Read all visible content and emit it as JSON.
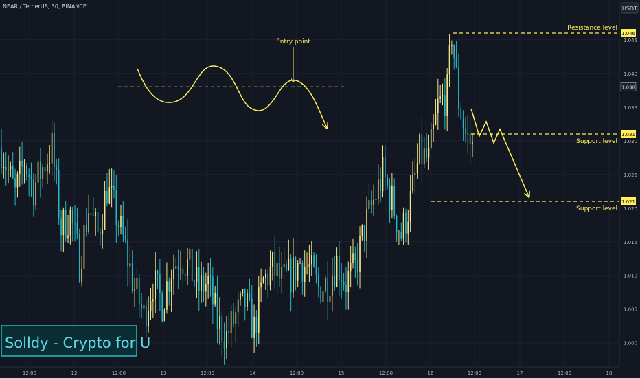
{
  "header": {
    "symbol_line": "NEAR / TetherUS, 30, BINANCE",
    "currency_badge": "USDT"
  },
  "watermark": "Solldy - Crypto for U",
  "colors": {
    "background": "#131722",
    "up_candle": "#f0e58a",
    "down_candle": "#26b8c4",
    "annotation": "#ffef5a",
    "axis_text": "#b2b5be",
    "grid": "#1e2230"
  },
  "chart_data": {
    "type": "candlestick",
    "x_tick_labels": [
      "12:00",
      "12",
      "12:00",
      "13",
      "12:00",
      "14",
      "12:00",
      "15",
      "12:00",
      "16",
      "12:00",
      "17",
      "12:00",
      "18"
    ],
    "y_ticks": [
      1.0,
      1.005,
      1.01,
      1.015,
      1.02,
      1.025,
      1.03,
      1.035,
      1.04,
      1.045
    ],
    "y_tick_labels": [
      "1.000",
      "1.005",
      "1.010",
      "1.015",
      "1.020",
      "1.025",
      "1.030",
      "1.035",
      "1.040",
      "1.045"
    ],
    "ylim": [
      0.9964,
      1.0509
    ],
    "levels": [
      {
        "label": "Resistance level",
        "value": 1.046,
        "value_label": "1.046",
        "label_position": "above"
      },
      {
        "label": "Support level",
        "value": 1.031,
        "value_label": "1.031",
        "label_position": "below"
      },
      {
        "label": "Support level",
        "value": 1.021,
        "value_label": "1.021",
        "label_position": "below"
      }
    ],
    "entry": {
      "label": "Entry point",
      "value": 1.038,
      "value_label": "1.038"
    },
    "anchors": [
      [
        0,
        1.029
      ],
      [
        6,
        1.022
      ],
      [
        10,
        1.027
      ],
      [
        14,
        1.023
      ],
      [
        18,
        1.026
      ],
      [
        22,
        1.029
      ],
      [
        26,
        1.017
      ],
      [
        30,
        1.019
      ],
      [
        34,
        1.012
      ],
      [
        38,
        1.02
      ],
      [
        42,
        1.016
      ],
      [
        46,
        1.023
      ],
      [
        50,
        1.019
      ],
      [
        54,
        1.014
      ],
      [
        58,
        1.008
      ],
      [
        62,
        1.004
      ],
      [
        66,
        1.009
      ],
      [
        70,
        1.006
      ],
      [
        74,
        1.011
      ],
      [
        78,
        1.013
      ],
      [
        82,
        1.011
      ],
      [
        86,
        1.008
      ],
      [
        90,
        1.009
      ],
      [
        94,
        1.003
      ],
      [
        98,
        1.001
      ],
      [
        102,
        1.004
      ],
      [
        106,
        1.006
      ],
      [
        110,
        1.002
      ],
      [
        114,
        1.009
      ],
      [
        118,
        1.011
      ],
      [
        122,
        1.009
      ],
      [
        126,
        1.01
      ],
      [
        130,
        1.012
      ],
      [
        134,
        1.011
      ],
      [
        138,
        1.008
      ],
      [
        142,
        1.009
      ],
      [
        146,
        1.012
      ],
      [
        150,
        1.009
      ],
      [
        154,
        1.011
      ],
      [
        158,
        1.017
      ],
      [
        162,
        1.021
      ],
      [
        166,
        1.025
      ],
      [
        170,
        1.021
      ],
      [
        174,
        1.016
      ],
      [
        178,
        1.021
      ],
      [
        182,
        1.028
      ],
      [
        186,
        1.027
      ],
      [
        190,
        1.035
      ],
      [
        194,
        1.037
      ],
      [
        196,
        1.046
      ],
      [
        199,
        1.036
      ],
      [
        202,
        1.031
      ],
      [
        205,
        1.029
      ]
    ],
    "candle_count": 206,
    "seed": 7
  }
}
